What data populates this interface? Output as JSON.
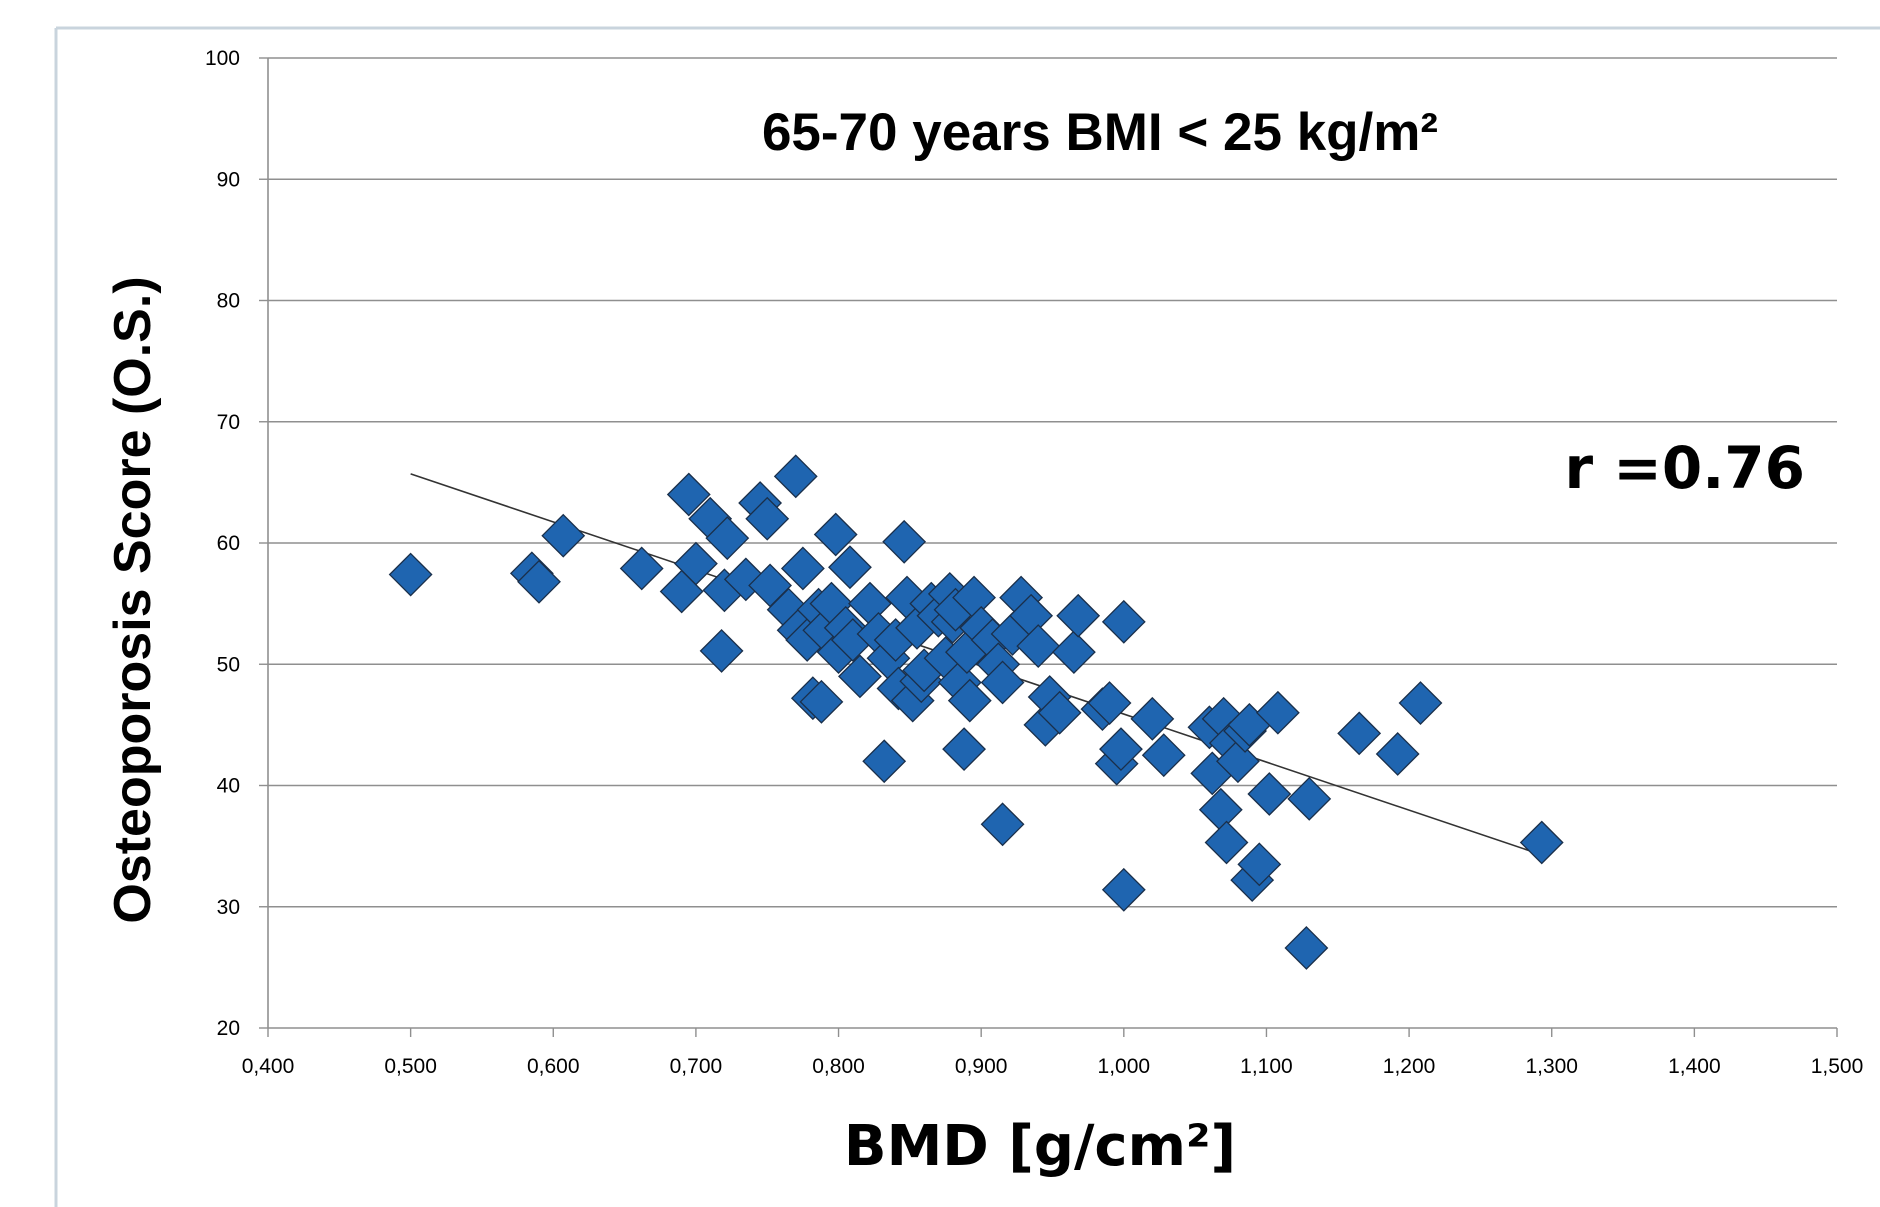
{
  "chart_data": {
    "type": "scatter",
    "title": "65-70 years BMI < 25 kg/m²",
    "xlabel": "BMD [g/cm²]",
    "ylabel": "Osteoporosis Score (O.S.)",
    "annotation": "r =0.76",
    "xlim": [
      0.4,
      1.5
    ],
    "ylim": [
      20,
      100
    ],
    "x_ticks": [
      "0,400",
      "0,500",
      "0,600",
      "0,700",
      "0,800",
      "0,900",
      "1,000",
      "1,100",
      "1,200",
      "1,300",
      "1,400",
      "1,500"
    ],
    "y_ticks": [
      "20",
      "30",
      "40",
      "50",
      "60",
      "70",
      "80",
      "90",
      "100"
    ],
    "grid": "horizontal",
    "marker": "diamond",
    "marker_color": "#1f65b0",
    "trendline": {
      "x": [
        0.5,
        1.29
      ],
      "y": [
        65.7,
        34.4
      ]
    },
    "points": [
      [
        0.5,
        57.4
      ],
      [
        0.585,
        57.5
      ],
      [
        0.59,
        56.8
      ],
      [
        0.607,
        60.6
      ],
      [
        0.662,
        57.9
      ],
      [
        0.69,
        56.0
      ],
      [
        0.695,
        64.0
      ],
      [
        0.7,
        58.3
      ],
      [
        0.71,
        62.0
      ],
      [
        0.718,
        51.1
      ],
      [
        0.72,
        56.1
      ],
      [
        0.722,
        60.4
      ],
      [
        0.735,
        57.0
      ],
      [
        0.745,
        63.3
      ],
      [
        0.75,
        62.0
      ],
      [
        0.752,
        56.5
      ],
      [
        0.765,
        54.5
      ],
      [
        0.77,
        65.5
      ],
      [
        0.772,
        52.8
      ],
      [
        0.775,
        57.9
      ],
      [
        0.778,
        52.0
      ],
      [
        0.782,
        47.2
      ],
      [
        0.786,
        54.5
      ],
      [
        0.788,
        46.9
      ],
      [
        0.79,
        52.8
      ],
      [
        0.795,
        55.0
      ],
      [
        0.798,
        60.7
      ],
      [
        0.8,
        51.0
      ],
      [
        0.805,
        53.0
      ],
      [
        0.808,
        58.0
      ],
      [
        0.81,
        52.0
      ],
      [
        0.815,
        49.0
      ],
      [
        0.822,
        55.0
      ],
      [
        0.828,
        52.5
      ],
      [
        0.832,
        42.0
      ],
      [
        0.835,
        50.5
      ],
      [
        0.84,
        52.0
      ],
      [
        0.842,
        48.0
      ],
      [
        0.846,
        60.1
      ],
      [
        0.848,
        55.5
      ],
      [
        0.852,
        47.0
      ],
      [
        0.855,
        53.0
      ],
      [
        0.858,
        48.6
      ],
      [
        0.86,
        49.5
      ],
      [
        0.865,
        55.0
      ],
      [
        0.87,
        54.0
      ],
      [
        0.875,
        50.5
      ],
      [
        0.878,
        55.8
      ],
      [
        0.88,
        53.5
      ],
      [
        0.882,
        54.5
      ],
      [
        0.885,
        48.5
      ],
      [
        0.888,
        43.0
      ],
      [
        0.89,
        51.0
      ],
      [
        0.892,
        47.0
      ],
      [
        0.895,
        55.5
      ],
      [
        0.9,
        53.0
      ],
      [
        0.908,
        52.0
      ],
      [
        0.912,
        50.0
      ],
      [
        0.915,
        48.5
      ],
      [
        0.915,
        36.8
      ],
      [
        0.922,
        52.5
      ],
      [
        0.928,
        55.5
      ],
      [
        0.935,
        54.0
      ],
      [
        0.94,
        51.5
      ],
      [
        0.945,
        45.0
      ],
      [
        0.948,
        47.3
      ],
      [
        0.955,
        46.0
      ],
      [
        0.965,
        51.0
      ],
      [
        0.968,
        54.0
      ],
      [
        0.985,
        46.3
      ],
      [
        0.99,
        46.8
      ],
      [
        0.995,
        41.8
      ],
      [
        0.998,
        43.0
      ],
      [
        1.0,
        53.5
      ],
      [
        1.0,
        31.4
      ],
      [
        1.02,
        45.5
      ],
      [
        1.028,
        42.5
      ],
      [
        1.06,
        44.8
      ],
      [
        1.062,
        41.0
      ],
      [
        1.068,
        38.0
      ],
      [
        1.07,
        45.5
      ],
      [
        1.072,
        35.3
      ],
      [
        1.075,
        43.5
      ],
      [
        1.08,
        42.0
      ],
      [
        1.085,
        44.5
      ],
      [
        1.088,
        45.0
      ],
      [
        1.09,
        32.2
      ],
      [
        1.095,
        33.5
      ],
      [
        1.102,
        39.3
      ],
      [
        1.108,
        46.0
      ],
      [
        1.128,
        26.6
      ],
      [
        1.13,
        38.9
      ],
      [
        1.165,
        44.3
      ],
      [
        1.192,
        42.6
      ],
      [
        1.208,
        46.8
      ],
      [
        1.293,
        35.3
      ]
    ]
  }
}
